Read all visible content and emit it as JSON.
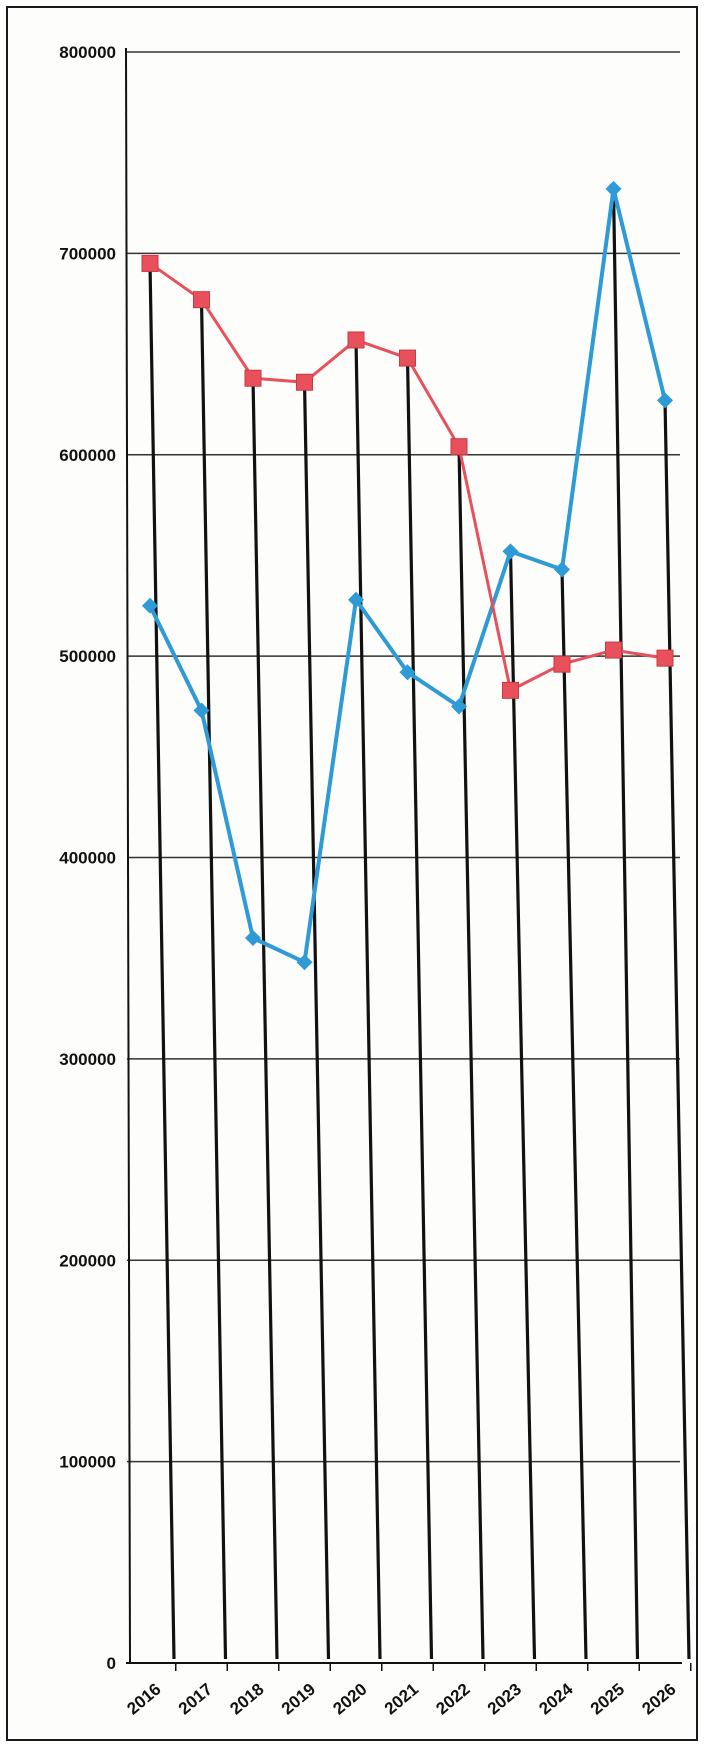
{
  "chart_data": {
    "type": "line",
    "title": "",
    "xlabel": "",
    "ylabel": "",
    "categories": [
      "2016",
      "2017",
      "2018",
      "2019",
      "2020",
      "2021",
      "2022",
      "2023",
      "2024",
      "2025",
      "2026"
    ],
    "ylim": [
      0,
      800000
    ],
    "yticks": [
      "0",
      "100000",
      "200000",
      "300000",
      "400000",
      "500000",
      "600000",
      "700000",
      "800000"
    ],
    "grid": true,
    "legend": "none",
    "series": [
      {
        "color": "#2e9ad6",
        "marker": "diamond",
        "values": [
          525000,
          473000,
          360000,
          348000,
          528000,
          492000,
          475000,
          552000,
          543000,
          732000,
          627000
        ]
      },
      {
        "color": "#e8505b",
        "marker": "square",
        "values": [
          695000,
          677000,
          638000,
          636000,
          657000,
          648000,
          604000,
          483000,
          496000,
          503000,
          499000
        ]
      }
    ],
    "drop_line_color": "#111111"
  }
}
